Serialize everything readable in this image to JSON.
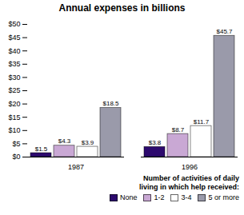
{
  "chart_data": {
    "type": "bar",
    "title": "Annual expenses in billions",
    "categories": [
      "1987",
      "1996"
    ],
    "series": [
      {
        "name": "None",
        "color": "#2d0a6e",
        "values": [
          1.5,
          3.8
        ],
        "value_labels": [
          "$1.5",
          "$3.8"
        ]
      },
      {
        "name": "1-2",
        "color": "#c9a8d4",
        "values": [
          4.3,
          8.7
        ],
        "value_labels": [
          "$4.3",
          "$8.7"
        ]
      },
      {
        "name": "3-4",
        "color": "#ffffff",
        "values": [
          3.9,
          11.7
        ],
        "value_labels": [
          "$3.9",
          "$11.7"
        ]
      },
      {
        "name": "5 or more",
        "color": "#9a9aaa",
        "values": [
          18.5,
          45.7
        ],
        "value_labels": [
          "$18.5",
          "$45.7"
        ]
      }
    ],
    "ylim": [
      0,
      50
    ],
    "yticks": [
      {
        "value": 0,
        "label": "$0"
      },
      {
        "value": 5,
        "label": "$5"
      },
      {
        "value": 10,
        "label": "$10"
      },
      {
        "value": 15,
        "label": "$15"
      },
      {
        "value": 20,
        "label": "$20"
      },
      {
        "value": 25,
        "label": "$25"
      },
      {
        "value": 30,
        "label": "$30"
      },
      {
        "value": 35,
        "label": "$35"
      },
      {
        "value": 40,
        "label": "$40"
      },
      {
        "value": 45,
        "label": "$45"
      },
      {
        "value": 50,
        "label": "$50"
      }
    ],
    "grid": false,
    "legend": "lower right",
    "legend_title": "Number of activities of daily\nliving in which help received:",
    "data_labels": true
  }
}
